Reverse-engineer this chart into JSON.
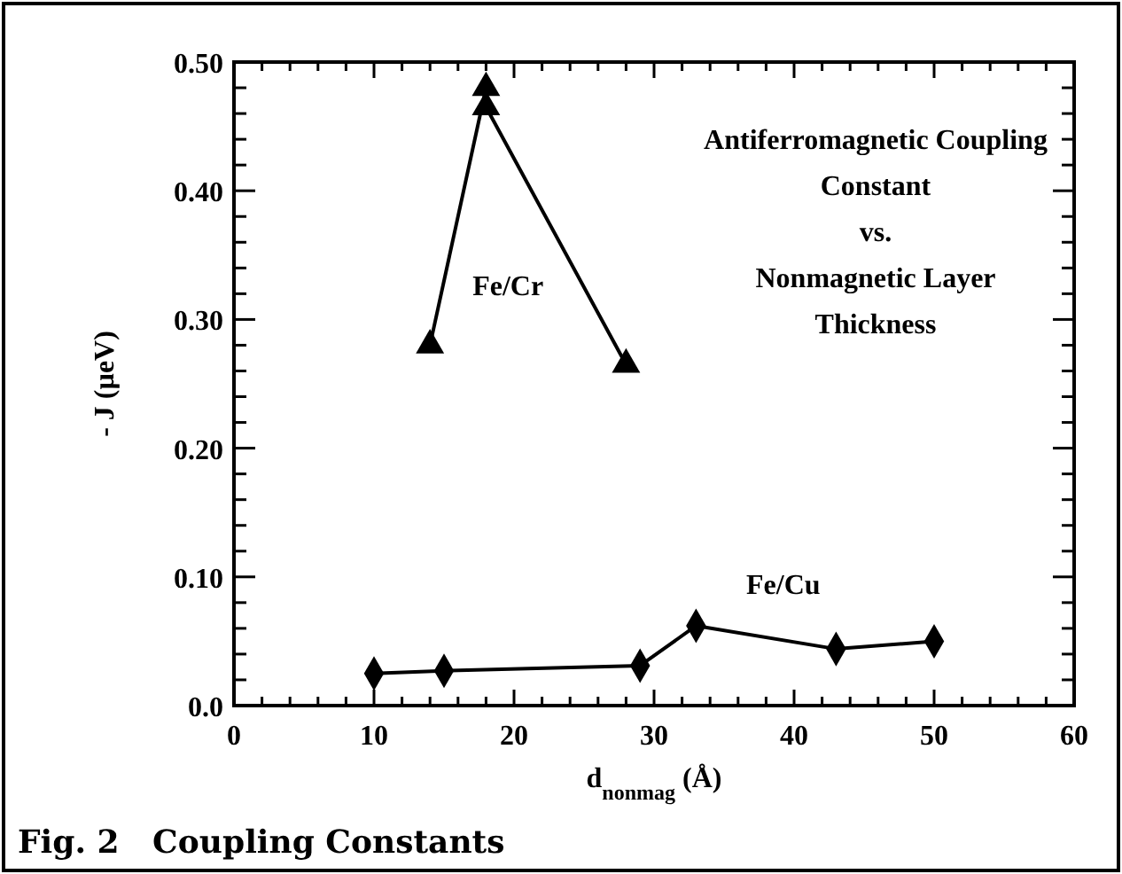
{
  "chart_data": {
    "type": "line",
    "title": "Antiferromagnetic Coupling\nConstant\nvs.\nNonmagnetic Layer\nThickness",
    "xlabel": "d$_{nonmag}$ (Å)",
    "ylabel": "- J (µeV)",
    "annotations": [
      "Fig. 2   Coupling Constants"
    ],
    "xlim": [
      0,
      60
    ],
    "ylim": [
      0,
      0.5
    ],
    "xticks": [
      0,
      {
        "value": 2,
        "label": null
      },
      {
        "value": 4,
        "label": null
      },
      {
        "value": 6,
        "label": null
      },
      {
        "value": 8,
        "label": null
      },
      10,
      {
        "value": 12,
        "label": null
      },
      {
        "value": 14,
        "label": null
      },
      {
        "value": 16,
        "label": null
      },
      {
        "value": 18,
        "label": null
      },
      20,
      {
        "value": 22,
        "label": null
      },
      {
        "value": 24,
        "label": null
      },
      {
        "value": 26,
        "label": null
      },
      {
        "value": 28,
        "label": null
      },
      30,
      {
        "value": 32,
        "label": null
      },
      {
        "value": 34,
        "label": null
      },
      {
        "value": 36,
        "label": null
      },
      {
        "value": 38,
        "label": null
      },
      40,
      {
        "value": 42,
        "label": null
      },
      {
        "value": 44,
        "label": null
      },
      {
        "value": 46,
        "label": null
      },
      {
        "value": 48,
        "label": null
      },
      50,
      {
        "value": 52,
        "label": null
      },
      {
        "value": 54,
        "label": null
      },
      {
        "value": 56,
        "label": null
      },
      {
        "value": 58,
        "label": null
      },
      60
    ],
    "yticks": [
      {
        "value": 0,
        "label": "0.0"
      },
      {
        "value": 0.02,
        "label": null
      },
      {
        "value": 0.04,
        "label": null
      },
      {
        "value": 0.06,
        "label": null
      },
      {
        "value": 0.08,
        "label": null
      },
      {
        "value": 0.1,
        "label": "0.10"
      },
      {
        "value": 0.12,
        "label": null
      },
      {
        "value": 0.14,
        "label": null
      },
      {
        "value": 0.16,
        "label": null
      },
      {
        "value": 0.18,
        "label": null
      },
      {
        "value": 0.2,
        "label": "0.20"
      },
      {
        "value": 0.22,
        "label": null
      },
      {
        "value": 0.24,
        "label": null
      },
      {
        "value": 0.26,
        "label": null
      },
      {
        "value": 0.28,
        "label": null
      },
      {
        "value": 0.3,
        "label": "0.30"
      },
      {
        "value": 0.32,
        "label": null
      },
      {
        "value": 0.34,
        "label": null
      },
      {
        "value": 0.36,
        "label": null
      },
      {
        "value": 0.38,
        "label": null
      },
      {
        "value": 0.4,
        "label": "0.40"
      },
      {
        "value": 0.42,
        "label": null
      },
      {
        "value": 0.44,
        "label": null
      },
      {
        "value": 0.46,
        "label": null
      },
      {
        "value": 0.48,
        "label": null
      },
      {
        "value": 0.5,
        "label": "0.50"
      }
    ],
    "grid": false,
    "series": [
      {
        "name": "Fe/Cr",
        "color": "#000000",
        "marker": "triangle",
        "x": [
          14,
          18,
          18,
          28
        ],
        "values": [
          0.28,
          0.48,
          0.465,
          0.265
        ]
      },
      {
        "name": "Fe/Cu",
        "color": "#000000",
        "marker": "diamond",
        "x": [
          10,
          15,
          29,
          33,
          43,
          50
        ],
        "values": [
          0.025,
          0.027,
          0.031,
          0.062,
          0.044,
          0.05
        ]
      }
    ]
  }
}
